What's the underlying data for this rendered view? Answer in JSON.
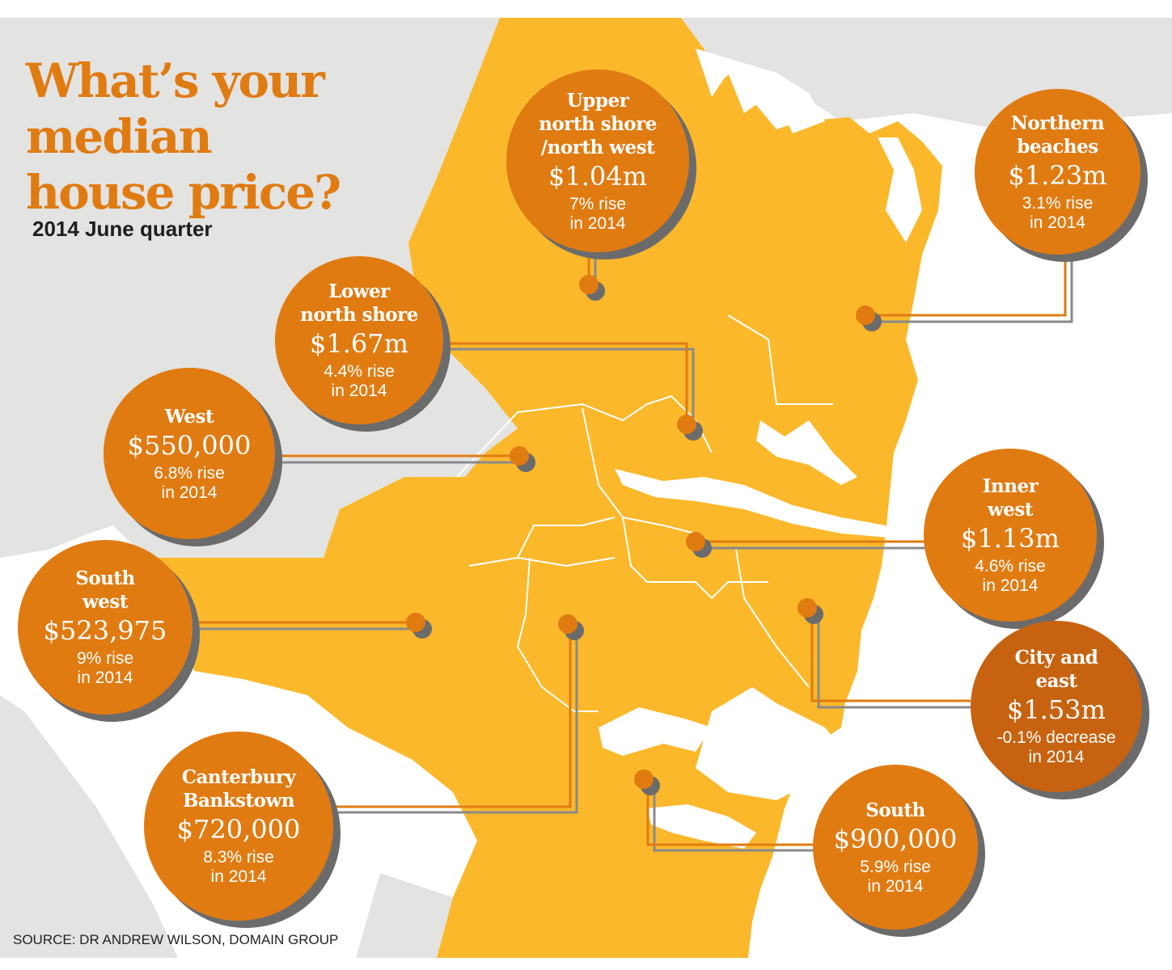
{
  "header": {
    "title_lines": [
      "What’s your",
      "median",
      "house price?"
    ],
    "subtitle": "2014 June quarter"
  },
  "footer": {
    "source": "SOURCE: DR ANDREW WILSON, DOMAIN GROUP"
  },
  "colors": {
    "accent": "#e07b12",
    "accent_dark": "#c76310",
    "map_fill": "#fbb82b",
    "land_grey": "#e3e3e1",
    "shadow": "#6b6b6b"
  },
  "regions": [
    {
      "name_lines": [
        "Upper",
        "north shore",
        "/north west"
      ],
      "price": "$1.04m",
      "change": "7% rise",
      "year": "in 2014"
    },
    {
      "name_lines": [
        "Northern",
        "beaches"
      ],
      "price": "$1.23m",
      "change": "3.1% rise",
      "year": "in 2014"
    },
    {
      "name_lines": [
        "Lower",
        "north shore"
      ],
      "price": "$1.67m",
      "change": "4.4% rise",
      "year": "in 2014"
    },
    {
      "name_lines": [
        "West"
      ],
      "price": "$550,000",
      "change": "6.8% rise",
      "year": "in 2014"
    },
    {
      "name_lines": [
        "Inner",
        "west"
      ],
      "price": "$1.13m",
      "change": "4.6% rise",
      "year": "in 2014"
    },
    {
      "name_lines": [
        "South",
        "west"
      ],
      "price": "$523,975",
      "change": "9% rise",
      "year": "in 2014"
    },
    {
      "name_lines": [
        "City and",
        "east"
      ],
      "price": "$1.53m",
      "change": "-0.1% decrease",
      "year": "in 2014"
    },
    {
      "name_lines": [
        "Canterbury",
        "Bankstown"
      ],
      "price": "$720,000",
      "change": "8.3% rise",
      "year": "in 2014"
    },
    {
      "name_lines": [
        "South"
      ],
      "price": "$900,000",
      "change": "5.9% rise",
      "year": "in 2014"
    }
  ]
}
